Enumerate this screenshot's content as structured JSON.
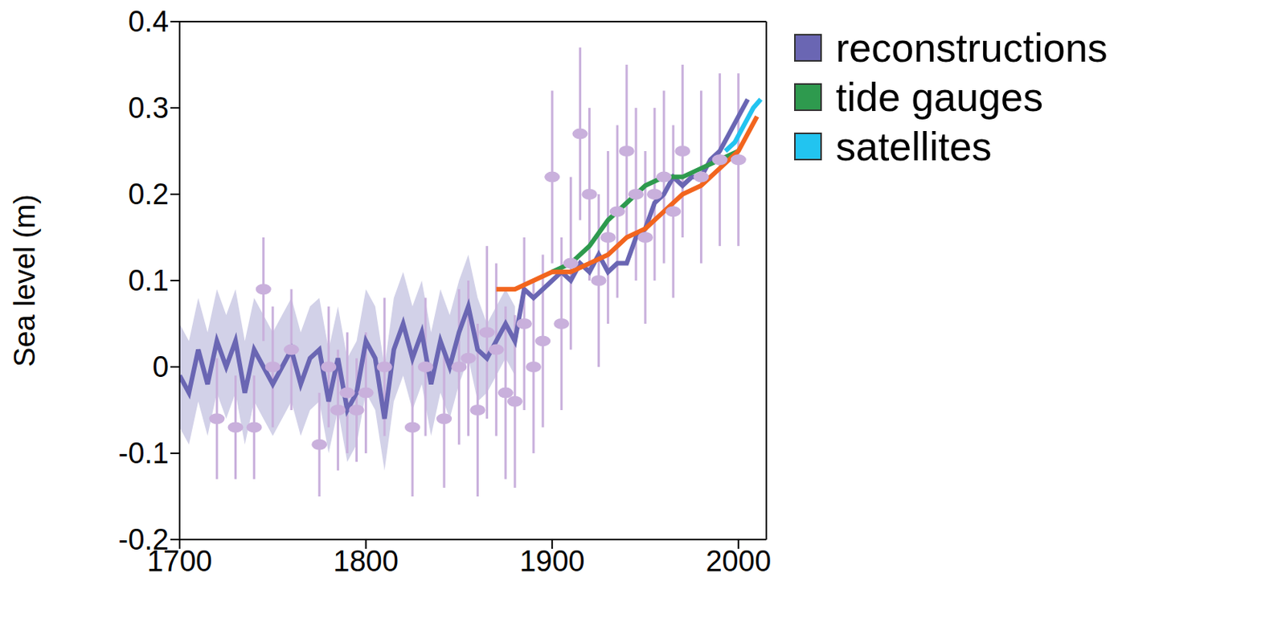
{
  "chart_data": {
    "type": "line",
    "ylabel": "Sea level (m)",
    "xlim": [
      1700,
      2015
    ],
    "xticks": [
      1700,
      1800,
      1900,
      2000
    ],
    "ylim": [
      -0.2,
      0.4
    ],
    "yticks": [
      -0.2,
      -0.1,
      0,
      0.1,
      0.2,
      0.3,
      0.4
    ],
    "grid": false,
    "legend": "right",
    "series": [
      {
        "type": "scatter",
        "color": "#c9b0dc",
        "marker": "circle",
        "x": [
          1720,
          1730,
          1740,
          1745,
          1750,
          1760,
          1775,
          1780,
          1785,
          1790,
          1795,
          1800,
          1810,
          1825,
          1832,
          1842,
          1850,
          1855,
          1860,
          1865,
          1870,
          1875,
          1880,
          1885,
          1890,
          1895,
          1900,
          1905,
          1910,
          1915,
          1920,
          1925,
          1930,
          1935,
          1940,
          1945,
          1950,
          1955,
          1960,
          1965,
          1970,
          1980,
          1990,
          2000
        ],
        "values": [
          -0.06,
          -0.07,
          -0.07,
          0.09,
          0.0,
          0.02,
          -0.09,
          0.0,
          -0.05,
          -0.03,
          -0.05,
          -0.03,
          0.0,
          -0.07,
          0.0,
          -0.06,
          0.0,
          0.01,
          -0.05,
          0.04,
          0.02,
          -0.03,
          -0.04,
          0.05,
          0.0,
          0.03,
          0.22,
          0.05,
          0.12,
          0.27,
          0.2,
          0.1,
          0.15,
          0.18,
          0.25,
          0.2,
          0.15,
          0.2,
          0.22,
          0.18,
          0.25,
          0.22,
          0.24,
          0.24
        ],
        "errors": [
          0.07,
          0.06,
          0.06,
          0.06,
          0.07,
          0.07,
          0.06,
          0.07,
          0.07,
          0.07,
          0.06,
          0.07,
          0.08,
          0.08,
          0.08,
          0.08,
          0.09,
          0.09,
          0.1,
          0.1,
          0.1,
          0.1,
          0.1,
          0.1,
          0.1,
          0.1,
          0.1,
          0.1,
          0.1,
          0.1,
          0.1,
          0.1,
          0.1,
          0.1,
          0.1,
          0.1,
          0.1,
          0.1,
          0.1,
          0.1,
          0.1,
          0.1,
          0.1,
          0.1
        ]
      },
      {
        "name": "reconstructions",
        "type": "line",
        "color": "#6a66b3",
        "x": [
          1700,
          1705,
          1710,
          1715,
          1720,
          1725,
          1730,
          1735,
          1740,
          1745,
          1750,
          1755,
          1760,
          1765,
          1770,
          1775,
          1780,
          1785,
          1790,
          1795,
          1800,
          1805,
          1810,
          1815,
          1820,
          1825,
          1830,
          1835,
          1840,
          1845,
          1850,
          1855,
          1860,
          1865,
          1870,
          1875,
          1880,
          1885,
          1890,
          1895,
          1900,
          1905,
          1910,
          1915,
          1920,
          1925,
          1930,
          1935,
          1940,
          1945,
          1950,
          1955,
          1960,
          1965,
          1970,
          1975,
          1980,
          1985,
          1990,
          1995,
          2000,
          2005
        ],
        "values": [
          -0.01,
          -0.03,
          0.02,
          -0.02,
          0.03,
          0.0,
          0.03,
          -0.03,
          0.02,
          0.0,
          -0.02,
          0.0,
          0.02,
          -0.02,
          0.01,
          0.02,
          -0.04,
          0.01,
          -0.05,
          -0.03,
          0.03,
          0.01,
          -0.06,
          0.02,
          0.05,
          0.01,
          0.04,
          -0.02,
          0.03,
          0.0,
          0.04,
          0.07,
          0.02,
          0.01,
          0.03,
          0.05,
          0.03,
          0.09,
          0.08,
          0.09,
          0.1,
          0.11,
          0.1,
          0.12,
          0.11,
          0.13,
          0.11,
          0.12,
          0.12,
          0.15,
          0.16,
          0.19,
          0.2,
          0.22,
          0.21,
          0.22,
          0.22,
          0.24,
          0.25,
          0.27,
          0.29,
          0.31
        ],
        "lower": [
          -0.07,
          -0.09,
          -0.04,
          -0.08,
          -0.03,
          -0.06,
          -0.03,
          -0.09,
          -0.04,
          -0.06,
          -0.08,
          -0.06,
          -0.04,
          -0.08,
          -0.05,
          -0.04,
          -0.1,
          -0.05,
          -0.11,
          -0.09,
          -0.03,
          -0.05,
          -0.12,
          -0.04,
          -0.01,
          -0.05,
          -0.02,
          -0.08,
          -0.03,
          -0.06,
          -0.02,
          0.01,
          -0.04,
          -0.03,
          -0.01,
          0.01,
          -0.01,
          null,
          null,
          null,
          null,
          null,
          null,
          null,
          null,
          null,
          null,
          null,
          null,
          null,
          null,
          null,
          null,
          null,
          null,
          null,
          null,
          null,
          null,
          null,
          null,
          null
        ],
        "upper": [
          0.05,
          0.03,
          0.08,
          0.04,
          0.09,
          0.06,
          0.09,
          0.03,
          0.08,
          0.06,
          0.04,
          0.06,
          0.08,
          0.04,
          0.07,
          0.08,
          0.02,
          0.07,
          0.01,
          0.03,
          0.09,
          0.07,
          0.0,
          0.08,
          0.11,
          0.07,
          0.1,
          0.04,
          0.09,
          0.06,
          0.1,
          0.13,
          0.08,
          0.05,
          0.07,
          0.09,
          0.07,
          null,
          null,
          null,
          null,
          null,
          null,
          null,
          null,
          null,
          null,
          null,
          null,
          null,
          null,
          null,
          null,
          null,
          null,
          null,
          null,
          null,
          null,
          null,
          null,
          null
        ]
      },
      {
        "name": "tide gauges",
        "type": "line",
        "color": "#2e9a4e",
        "x": [
          1900,
          1910,
          1920,
          1930,
          1940,
          1950,
          1960,
          1970,
          1980,
          1990,
          2000
        ],
        "values": [
          0.11,
          0.12,
          0.14,
          0.17,
          0.19,
          0.21,
          0.22,
          0.22,
          0.23,
          0.24,
          0.25
        ]
      },
      {
        "type": "line",
        "color": "#f2651e",
        "x": [
          1870,
          1880,
          1890,
          1900,
          1910,
          1920,
          1930,
          1940,
          1950,
          1960,
          1970,
          1980,
          1990,
          2000,
          2010
        ],
        "values": [
          0.09,
          0.09,
          0.1,
          0.11,
          0.11,
          0.12,
          0.13,
          0.15,
          0.16,
          0.18,
          0.2,
          0.21,
          0.23,
          0.25,
          0.29
        ]
      },
      {
        "name": "satellites",
        "type": "line",
        "color": "#22c4f0",
        "x": [
          1993,
          1998,
          2003,
          2008,
          2012
        ],
        "values": [
          0.25,
          0.26,
          0.28,
          0.3,
          0.31
        ]
      }
    ]
  }
}
